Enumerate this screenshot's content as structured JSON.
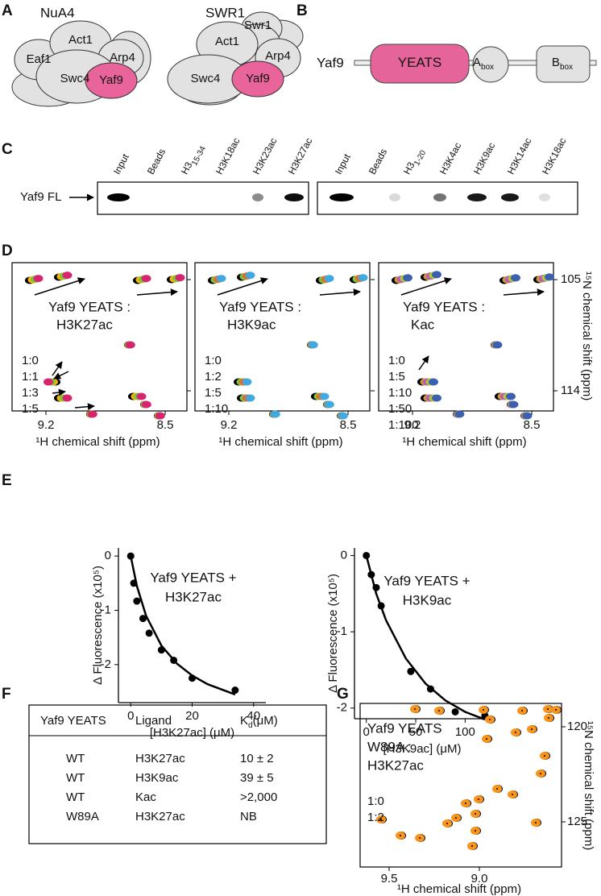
{
  "panels": {
    "A": {
      "label": "A",
      "complexes": [
        {
          "name": "NuA4",
          "subunits": [
            "Eaf1",
            "Act1",
            "Arp4",
            "Swc4",
            "Yaf9"
          ]
        },
        {
          "name": "SWR1",
          "subunits": [
            "Swr1",
            "Act1",
            "Arp4",
            "Swc4",
            "Yaf9"
          ]
        }
      ]
    },
    "B": {
      "label": "B",
      "protein": "Yaf9",
      "domains": [
        {
          "text": "YEATS"
        },
        {
          "text": "A",
          "sub": "box"
        },
        {
          "text": "B",
          "sub": "box"
        }
      ]
    },
    "C": {
      "label": "C",
      "row_label": "Yaf9 FL",
      "blots": [
        {
          "lanes": [
            {
              "text": "Input"
            },
            {
              "text": "Beads"
            },
            {
              "text": "H3",
              "sub": "15-34"
            },
            {
              "text": "H3K18ac"
            },
            {
              "text": "H3K23ac"
            },
            {
              "text": "H3K27ac"
            }
          ]
        },
        {
          "lanes": [
            {
              "text": "Input"
            },
            {
              "text": "Beads"
            },
            {
              "text": "H3",
              "sub": "1-20"
            },
            {
              "text": "H3K4ac"
            },
            {
              "text": "H3K9ac"
            },
            {
              "text": "H3K14ac"
            },
            {
              "text": "H3K18ac"
            }
          ]
        }
      ]
    },
    "D": {
      "label": "D",
      "x_ticks": [
        "9.2",
        "8.5"
      ],
      "x_label": "¹H chemical shift (ppm)",
      "y_ticks": [
        "105",
        "114"
      ],
      "y_label": "¹⁵N chemical shift (ppm)",
      "spectra": [
        {
          "title": [
            "Yaf9 YEATS :",
            "H3K27ac"
          ],
          "ratios": [
            {
              "text": "1:0",
              "color": "#000000"
            },
            {
              "text": "1:1",
              "color": "#f2b705"
            },
            {
              "text": "1:3",
              "color": "#7cc242"
            },
            {
              "text": "1:5",
              "color": "#d6246e"
            }
          ]
        },
        {
          "title": [
            "Yaf9 YEATS :",
            "H3K9ac"
          ],
          "ratios": [
            {
              "text": "1:0",
              "color": "#000000"
            },
            {
              "text": "1:2",
              "color": "#7cc242"
            },
            {
              "text": "1:5",
              "color": "#f26522"
            },
            {
              "text": "1:10",
              "color": "#3fa9e0"
            }
          ]
        },
        {
          "title": [
            "Yaf9 YEATS :",
            "Kac"
          ],
          "ratios": [
            {
              "text": "1:0",
              "color": "#000000"
            },
            {
              "text": "1:5",
              "color": "#c8963e"
            },
            {
              "text": "1:10",
              "color": "#c452b8"
            },
            {
              "text": "1:50",
              "color": "#a6ce39"
            },
            {
              "text": "1:100",
              "color": "#3d5fb0"
            }
          ]
        }
      ]
    },
    "E": {
      "label": "E"
    },
    "F": {
      "label": "F",
      "header": [
        {
          "text": "Yaf9 YEATS"
        },
        {
          "text": "Ligand"
        },
        {
          "text": "K",
          "sub": "d",
          "after": "(μM)"
        }
      ],
      "rows": [
        [
          "WT",
          "H3K27ac",
          "10 ± 2"
        ],
        [
          "WT",
          "H3K9ac",
          "39 ± 5"
        ],
        [
          "WT",
          "Kac",
          ">2,000"
        ],
        [
          "W89A",
          "H3K27ac",
          "NB"
        ]
      ]
    },
    "G": {
      "label": "G",
      "title": [
        "Yaf9 YEATS",
        "W89A :",
        "H3K27ac"
      ],
      "ratios": [
        {
          "text": "1:0",
          "color": "#000000"
        },
        {
          "text": "1:2",
          "color": "#f7941d"
        }
      ],
      "x_ticks": [
        "9.5",
        "9.0"
      ],
      "x_label": "¹H chemical shift (ppm)",
      "y_ticks": [
        "120",
        "125"
      ],
      "y_label": "¹⁵N chemical shift (ppm)"
    }
  },
  "chart_data": [
    {
      "type": "scatter",
      "title": [
        "Yaf9 YEATS +",
        "H3K27ac"
      ],
      "x_label": "[H3K27ac] (μM)",
      "y_label": "Δ Fluorescence (x10⁵)",
      "x": [
        0,
        1,
        2,
        4,
        6,
        10,
        14,
        20,
        34
      ],
      "values": [
        0,
        -0.5,
        -0.83,
        -1.15,
        -1.42,
        -1.73,
        -1.92,
        -2.25,
        -2.47
      ],
      "fit_x": [
        0,
        2,
        5,
        10,
        15,
        20,
        25,
        34
      ],
      "fit_values": [
        0,
        -0.55,
        -1.1,
        -1.65,
        -1.98,
        -2.2,
        -2.36,
        -2.55
      ],
      "xlim": [
        -4,
        44
      ],
      "ylim": [
        -2.7,
        0.15
      ],
      "xticks": [
        0,
        20,
        40
      ],
      "yticks": [
        0,
        -1,
        -2
      ],
      "color": "#000000"
    },
    {
      "type": "scatter",
      "title": [
        "Yaf9 YEATS +",
        "H3K9ac"
      ],
      "x_label": "[H3K9ac] (μM)",
      "y_label": "Δ Fluorescence (x10⁵)",
      "x": [
        0,
        5,
        10,
        15,
        45,
        65,
        90,
        120
      ],
      "values": [
        0,
        -0.25,
        -0.42,
        -0.66,
        -1.52,
        -1.75,
        -2.05,
        -2.1
      ],
      "fit_x": [
        0,
        10,
        20,
        40,
        60,
        80,
        100,
        120
      ],
      "fit_values": [
        0,
        -0.5,
        -0.85,
        -1.35,
        -1.68,
        -1.9,
        -2.05,
        -2.15
      ],
      "xlim": [
        -12,
        125
      ],
      "ylim": [
        -2.14,
        0.1
      ],
      "xticks": [
        0,
        50,
        100
      ],
      "yticks": [
        0,
        -1,
        -2
      ],
      "color": "#000000"
    }
  ]
}
